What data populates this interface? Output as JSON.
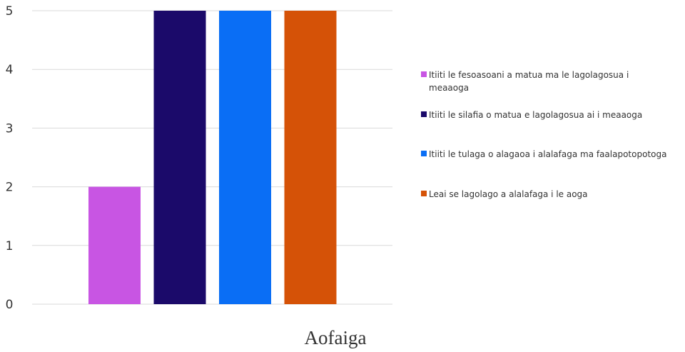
{
  "chart_data": {
    "type": "bar",
    "title": "",
    "xlabel": "Aofaiga",
    "ylabel": "",
    "ylim": [
      0,
      5
    ],
    "yticks": [
      "0",
      "1",
      "2",
      "3",
      "4",
      "5"
    ],
    "grid": true,
    "legend_position": "right",
    "series": [
      {
        "name": "Itiiti le fesoasoani a matua ma le lagolagosua i meaaoga",
        "value": 2,
        "color": "#c855e3"
      },
      {
        "name": "Itiiti le silafia o matua e lagolagosua ai i meaaoga",
        "value": 5,
        "color": "#1b0a6a"
      },
      {
        "name": "Itiiti le tulaga o alagaoa i alalafaga ma faalapotopotoga",
        "value": 5,
        "color": "#0a6ef5"
      },
      {
        "name": "Leai se lagolago a alalafaga i le aoga",
        "value": 5,
        "color": "#d55207"
      }
    ]
  }
}
